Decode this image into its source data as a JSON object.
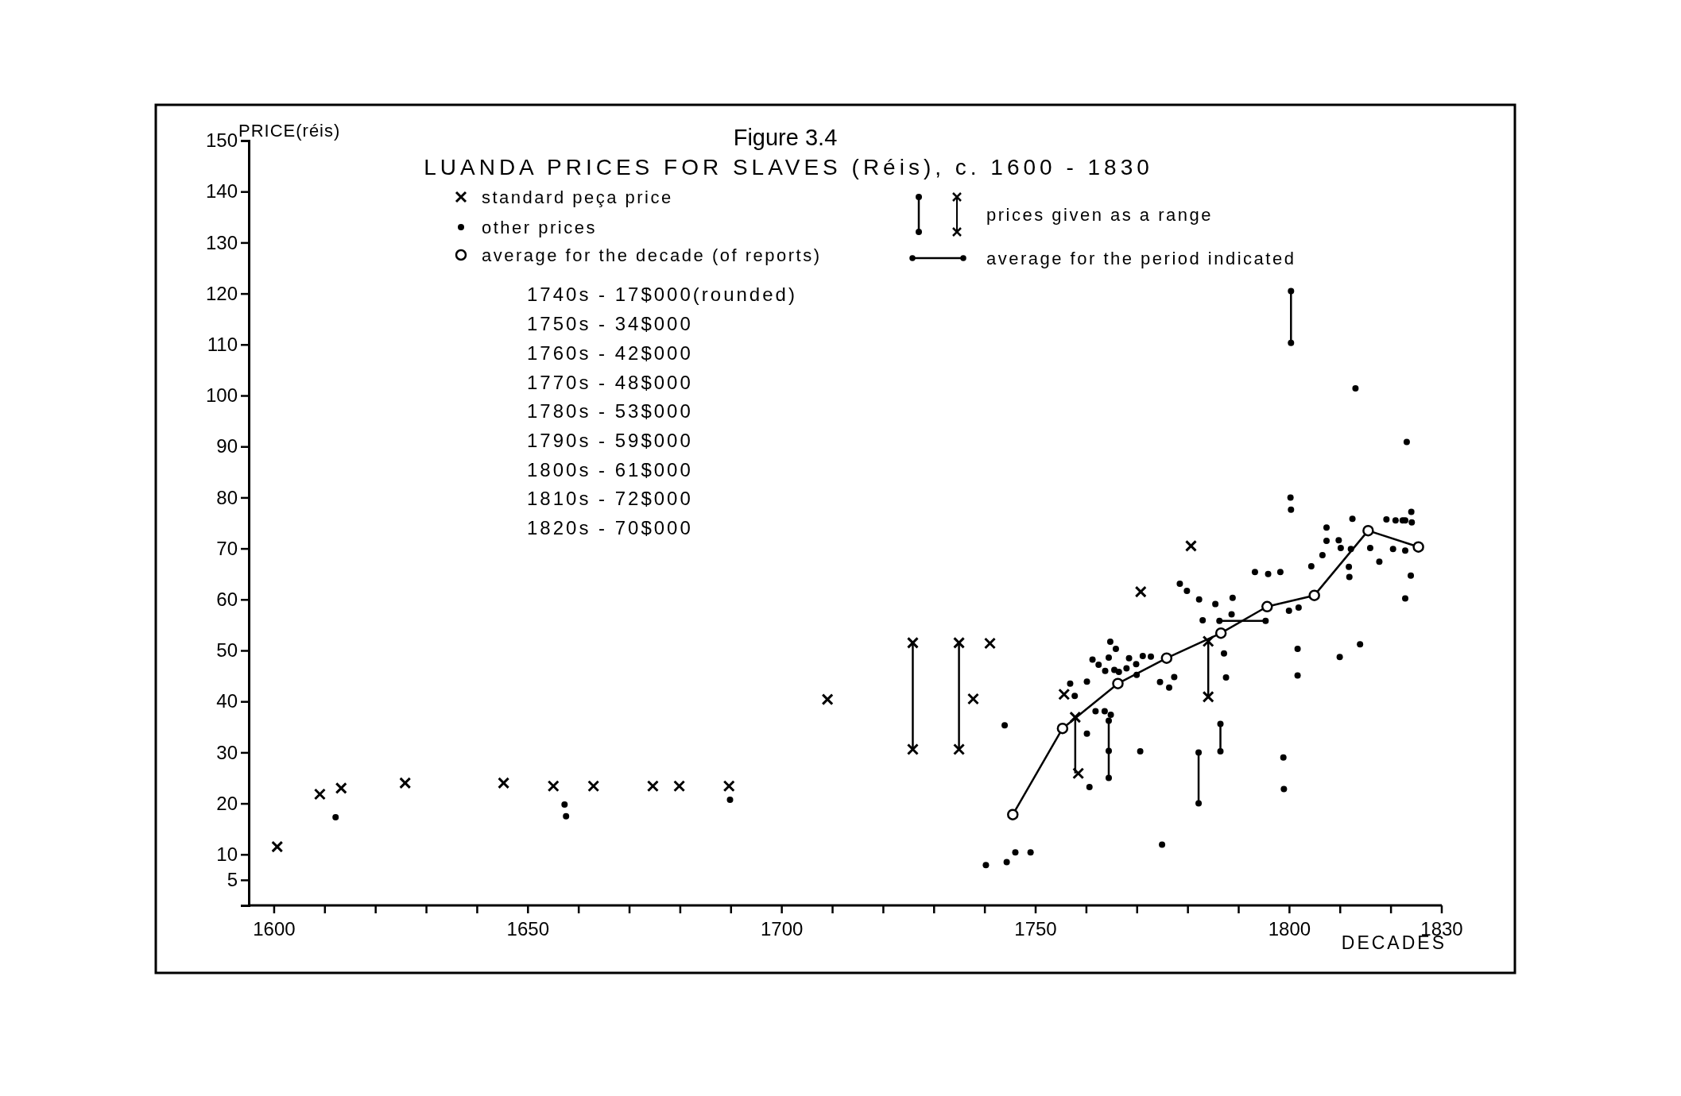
{
  "chart_data": {
    "type": "scatter",
    "title": "Figure 3.4",
    "subtitle": "LUANDA PRICES FOR SLAVES (Réis), c. 1600 - 1830",
    "xlabel": "DECADES",
    "ylabel": "PRICE(réis)",
    "xlim": [
      1595,
      1830
    ],
    "ylim": [
      0,
      150
    ],
    "xticks": [
      1600,
      {
        "value": 1610,
        "label": null
      },
      {
        "value": 1620,
        "label": null
      },
      {
        "value": 1630,
        "label": null
      },
      {
        "value": 1640,
        "label": null
      },
      1650,
      {
        "value": 1660,
        "label": null
      },
      {
        "value": 1670,
        "label": null
      },
      {
        "value": 1680,
        "label": null
      },
      {
        "value": 1690,
        "label": null
      },
      1700,
      {
        "value": 1710,
        "label": null
      },
      {
        "value": 1720,
        "label": null
      },
      {
        "value": 1730,
        "label": null
      },
      {
        "value": 1740,
        "label": null
      },
      1750,
      {
        "value": 1760,
        "label": null
      },
      {
        "value": 1770,
        "label": null
      },
      {
        "value": 1780,
        "label": null
      },
      {
        "value": 1790,
        "label": null
      },
      1800,
      {
        "value": 1810,
        "label": null
      },
      {
        "value": 1820,
        "label": null
      },
      1830
    ],
    "yticks": [
      5,
      10,
      20,
      30,
      40,
      50,
      60,
      70,
      80,
      90,
      100,
      110,
      120,
      130,
      140,
      150
    ],
    "grid": false,
    "legend": "top",
    "series": [
      {
        "name": "standard peça price",
        "marker": "cross",
        "errors": [
          null,
          null,
          null,
          null,
          null,
          null,
          null,
          null,
          null,
          null,
          null,
          [
            30.6,
            51.5
          ],
          null,
          [
            30.6,
            51.5
          ],
          null,
          null,
          null,
          null,
          [
            25.9,
            36.9
          ],
          null,
          null,
          null,
          [
            40.9,
            51.8
          ],
          null
        ],
        "color": "#000000",
        "x": [
          1600.6,
          1609,
          1613.2,
          1625.8,
          1645.2,
          1655,
          1662.9,
          1674.6,
          1679.8,
          1689.6,
          1709,
          1725.8,
          1725.8,
          1734.9,
          1734.9,
          1737.7,
          1741,
          1755.6,
          1757.8,
          1758.4,
          1770.7,
          1780.6,
          1784,
          1784
        ],
        "values": [
          11.5,
          21.8,
          23,
          24,
          24,
          23.4,
          23.4,
          23.4,
          23.4,
          23.4,
          40.4,
          51.5,
          30.6,
          51.5,
          30.6,
          40.5,
          51.4,
          41.4,
          36.9,
          25.9,
          61.5,
          70.5,
          51.8,
          40.9
        ]
      },
      {
        "name": "other prices",
        "marker": "circle",
        "errors": [
          null,
          null,
          null,
          null,
          null,
          null,
          null,
          null,
          null,
          null,
          null,
          null,
          null,
          null,
          null,
          null,
          null,
          null,
          null,
          null,
          [
            25,
            36.2
          ],
          null,
          null,
          null,
          null,
          null,
          null,
          null,
          null,
          null,
          null,
          null,
          null,
          null,
          null,
          null,
          null,
          null,
          null,
          null,
          null,
          [
            20,
            30
          ],
          null,
          null,
          null,
          null,
          null,
          [
            30.2,
            35.6
          ],
          null,
          null,
          null,
          null,
          null,
          null,
          null,
          null,
          null,
          null,
          null,
          null,
          null,
          null,
          [
            110.3,
            120.5
          ],
          null,
          null,
          null,
          null,
          null,
          null,
          null,
          null,
          null,
          null,
          null,
          null,
          null,
          null,
          null,
          null,
          null,
          null,
          null,
          null,
          null,
          null,
          null,
          null,
          null,
          null,
          null,
          null,
          null,
          null
        ],
        "color": "#000000",
        "x": [
          1612.1,
          1657.2,
          1657.5,
          1689.8,
          1740.2,
          1743.9,
          1744.3,
          1746,
          1749,
          1756.8,
          1757.7,
          1760.1,
          1760.1,
          1760.6,
          1761.2,
          1761.8,
          1762.4,
          1763.6,
          1763.7,
          1764.4,
          1764.4,
          1764.4,
          1764.4,
          1764.7,
          1764.8,
          1765.5,
          1765.8,
          1766.4,
          1767.9,
          1768.4,
          1769.8,
          1769.9,
          1770.6,
          1771.1,
          1772.7,
          1774.5,
          1774.9,
          1776.3,
          1777.3,
          1778.4,
          1779.8,
          1782.1,
          1782.1,
          1782.2,
          1782.9,
          1785.4,
          1786.2,
          1786.4,
          1786.4,
          1787.1,
          1787.5,
          1788.6,
          1788.8,
          1793.2,
          1795.3,
          1795.8,
          1798.2,
          1798.8,
          1798.9,
          1799.9,
          1800.2,
          1800.3,
          1800.3,
          1800.3,
          1801.6,
          1801.6,
          1801.8,
          1804.3,
          1806.5,
          1807.3,
          1807.3,
          1809.7,
          1809.9,
          1810.1,
          1811.7,
          1811.8,
          1812.1,
          1812.4,
          1813,
          1813.9,
          1815.9,
          1817.7,
          1819.1,
          1820.4,
          1820.9,
          1822.3,
          1822.8,
          1822.8,
          1822.8,
          1823.1,
          1823.9,
          1824,
          1824.1
        ],
        "values": [
          17.3,
          19.8,
          17.5,
          20.7,
          7.9,
          35.3,
          8.5,
          10.4,
          10.4,
          43.5,
          41.1,
          43.9,
          33.7,
          23.2,
          48.2,
          38.1,
          47.2,
          38.1,
          46,
          48.6,
          36.2,
          30.3,
          25,
          51.7,
          37.4,
          46.2,
          50.3,
          45.8,
          46.5,
          48.5,
          47.3,
          45.2,
          30.2,
          48.9,
          48.8,
          43.8,
          11.9,
          42.7,
          44.8,
          63.1,
          61.7,
          30,
          20,
          60,
          55.9,
          59.1,
          55.8,
          35.6,
          30.2,
          49.4,
          44.7,
          57.1,
          60.3,
          65.4,
          55.8,
          65,
          65.4,
          29,
          22.8,
          57.8,
          80,
          77.6,
          120.5,
          110.3,
          50.3,
          45.1,
          58.4,
          66.5,
          68.7,
          74.1,
          71.5,
          71.6,
          48.7,
          70.1,
          66.4,
          64.4,
          69.9,
          75.8,
          101.4,
          51.2,
          70.1,
          67.4,
          75.7,
          69.9,
          75.5,
          75.5,
          75.5,
          69.6,
          60.2,
          90.9,
          64.7,
          77.2,
          75.1
        ]
      },
      {
        "name": "average for the decade (of reports)",
        "type": "line",
        "marker": "circle",
        "color": "#000000",
        "x": [
          1745.5,
          1755.3,
          1766.2,
          1775.8,
          1786.5,
          1795.6,
          1804.9,
          1815.5,
          1825.4
        ],
        "values": [
          17.8,
          34.7,
          43.5,
          48.5,
          53.4,
          58.6,
          60.8,
          73.5,
          70.3
        ]
      },
      {
        "name": "average for the period indicated",
        "type": "line",
        "marker": "none",
        "color": "#000000",
        "x": [
          1786.2,
          1795.3
        ],
        "values": [
          55.8,
          55.8
        ]
      }
    ],
    "annotations": [
      "prices given as a range",
      "1740s - 17$000(rounded)",
      "1750s - 34$000",
      "1760s - 42$000",
      "1770s - 48$000",
      "1780s - 53$000",
      "1790s - 59$000",
      "1800s - 61$000",
      "1810s - 72$000",
      "1820s - 70$000"
    ]
  }
}
